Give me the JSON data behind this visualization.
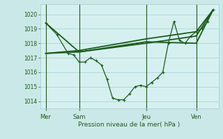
{
  "background_color": "#cbe8e8",
  "plot_bg_color": "#d6f0f0",
  "grid_color": "#9ecece",
  "line_color": "#1a5c1a",
  "xlabel": "Pression niveau de la mer( hPa )",
  "ylim": [
    1013.5,
    1020.7
  ],
  "yticks": [
    1014,
    1015,
    1016,
    1017,
    1018,
    1019,
    1020
  ],
  "day_labels": [
    "Mer",
    "Sam",
    "Jeu",
    "Ven"
  ],
  "jagged": {
    "x": [
      0,
      2,
      4,
      5,
      6,
      7,
      8,
      9,
      10,
      11,
      12,
      14,
      15,
      16,
      17,
      18,
      20,
      21,
      22,
      23,
      24,
      25,
      26,
      28,
      29,
      30
    ],
    "y": [
      1019.4,
      1018.6,
      1017.3,
      1017.2,
      1016.7,
      1016.7,
      1017.0,
      1016.8,
      1016.6,
      1015.5,
      1014.2,
      1014.1,
      1014.1,
      1014.8,
      1015.2,
      1015.1,
      1015.0,
      1015.6,
      1016.0,
      1018.0,
      1019.5,
      1018.2,
      1018.0,
      1018.8,
      1019.2,
      1019.5
    ]
  },
  "jagged2": {
    "x": [
      0,
      2,
      4,
      5,
      6,
      7,
      8,
      9,
      10,
      11,
      12,
      13,
      14,
      15,
      16,
      17,
      18,
      19,
      20,
      21,
      22,
      23,
      24,
      25,
      26,
      27,
      28,
      29,
      30
    ],
    "y": [
      1019.4,
      1018.6,
      1017.3,
      1017.2,
      1016.7,
      1016.7,
      1017.0,
      1016.8,
      1016.5,
      1015.5,
      1014.2,
      1014.1,
      1014.1,
      1014.5,
      1015.0,
      1015.1,
      1015.0,
      1015.3,
      1015.6,
      1016.0,
      1018.0,
      1019.5,
      1018.2,
      1018.0,
      1018.5,
      1018.8,
      1019.0,
      1019.5,
      1020.3
    ]
  },
  "smooth1": {
    "x": [
      0,
      6,
      18,
      27,
      30
    ],
    "y": [
      1017.3,
      1017.4,
      1018.0,
      1018.5,
      1020.3
    ]
  },
  "smooth2": {
    "x": [
      0,
      6,
      18,
      27,
      30
    ],
    "y": [
      1019.4,
      1017.4,
      1018.1,
      1018.0,
      1020.3
    ]
  },
  "smooth3": {
    "x": [
      0,
      6,
      18,
      27,
      30
    ],
    "y": [
      1017.3,
      1017.5,
      1018.3,
      1018.8,
      1020.3
    ]
  },
  "xlim": [
    -1,
    31
  ],
  "vlines": [
    0,
    6,
    18,
    27
  ]
}
